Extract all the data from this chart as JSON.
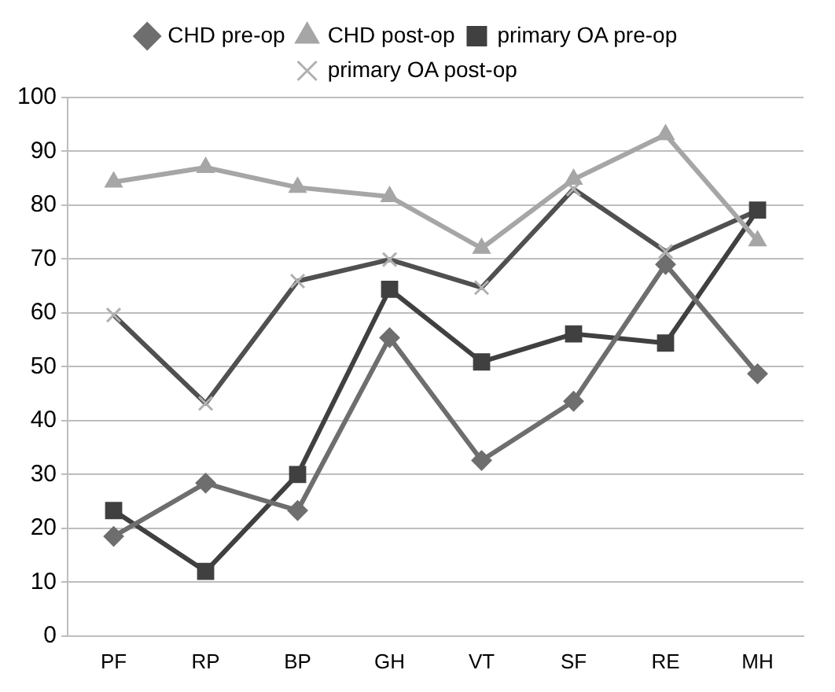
{
  "chart_data": {
    "type": "line",
    "categories": [
      "PF",
      "RP",
      "BP",
      "GH",
      "VT",
      "SF",
      "RE",
      "MH"
    ],
    "ylim": [
      0,
      100
    ],
    "yticks": [
      0,
      10,
      20,
      30,
      40,
      50,
      60,
      70,
      80,
      90,
      100
    ],
    "grid": "y",
    "legend": "top",
    "line_style": "solid",
    "series": [
      {
        "name": "CHD pre-op",
        "color": "#6e6e6e",
        "marker": "diamond",
        "values": [
          18.5,
          28.4,
          23.3,
          55.4,
          32.6,
          43.6,
          69,
          48.7
        ]
      },
      {
        "name": "CHD post-op",
        "color": "#a6a6a6",
        "marker": "triangle",
        "values": [
          84.3,
          87,
          83.3,
          81.6,
          72,
          84.8,
          93.1,
          73.4
        ]
      },
      {
        "name": "primary OA pre-op",
        "color": "#404040",
        "marker": "square",
        "values": [
          23.3,
          12,
          30,
          64.4,
          50.9,
          56.1,
          54.4,
          79.1
        ]
      },
      {
        "name": "primary OA post-op",
        "color": "#505050",
        "marker": "cross",
        "values": [
          59.6,
          43.2,
          65.9,
          69.9,
          64.7,
          83,
          71.4,
          79
        ]
      }
    ]
  }
}
